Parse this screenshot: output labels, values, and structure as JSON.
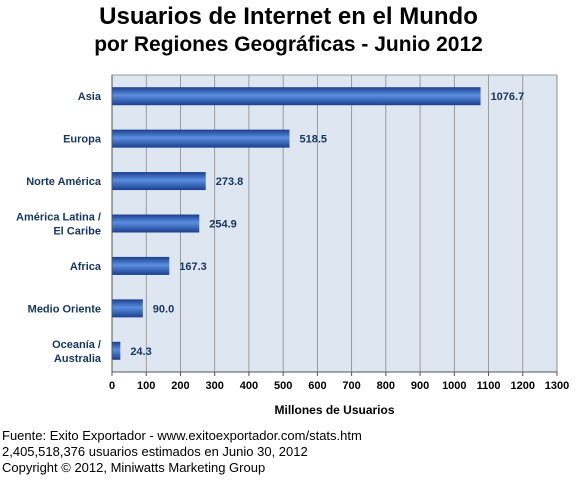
{
  "chart_data": {
    "type": "bar",
    "orientation": "horizontal",
    "title": "Usuarios de Internet en el Mundo",
    "subtitle": "por Regiones Geográficas - Junio 2012",
    "xlabel": "Millones de Usuarios",
    "ylabel": "",
    "categories": [
      [
        "Asia"
      ],
      [
        "Europa"
      ],
      [
        "Norte América"
      ],
      [
        "América Latina /",
        "El Caribe"
      ],
      [
        "Africa"
      ],
      [
        "Medio Oriente"
      ],
      [
        "Oceanía  /",
        "Australia"
      ]
    ],
    "values": [
      1076.7,
      518.5,
      273.8,
      254.9,
      167.3,
      90.0,
      24.3
    ],
    "value_labels": [
      "1076.7",
      "518.5",
      "273.8",
      "254.9",
      "167.3",
      "90.0",
      "24.3"
    ],
    "xlim": [
      0,
      1300
    ],
    "xticks": [
      0,
      100,
      200,
      300,
      400,
      500,
      600,
      700,
      800,
      900,
      1000,
      1100,
      1200,
      1300
    ],
    "grid": true,
    "colors": {
      "plot_background": "#dde6f1",
      "bar_dark": "#1a3f8f",
      "bar_light": "#5b8ee0",
      "gridline": "#8a8a8a",
      "label_text": "#17365d"
    }
  },
  "footer": {
    "line1": "Fuente: Exito Exportador - www.exitoexportador.com/stats.htm",
    "line2": "2,405,518,376 usuarios estimados en Junio 30, 2012",
    "line3": "Copyright © 2012, Miniwatts Marketing Group"
  }
}
